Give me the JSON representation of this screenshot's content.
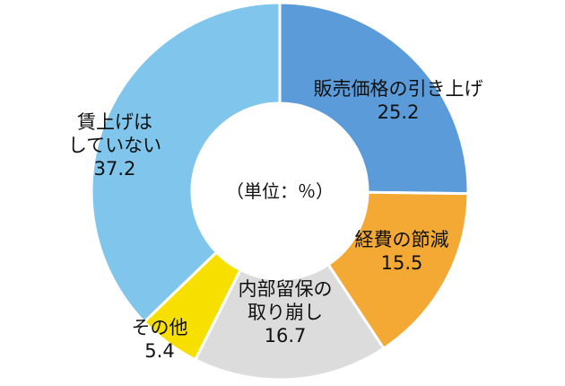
{
  "chart_data": {
    "type": "pie",
    "variant": "donut",
    "unit_label": "（単位：％）",
    "start": "top, clockwise",
    "slices": [
      {
        "label_lines": [
          "販売価格の引き上げ"
        ],
        "value": 25.2,
        "value_text": "25.2",
        "color": "#5b9bd9"
      },
      {
        "label_lines": [
          "経費の節減"
        ],
        "value": 15.5,
        "value_text": "15.5",
        "color": "#f4a935"
      },
      {
        "label_lines": [
          "内部留保の",
          "取り崩し"
        ],
        "value": 16.7,
        "value_text": "16.7",
        "color": "#dcdcdc"
      },
      {
        "label_lines": [
          "その他"
        ],
        "value": 5.4,
        "value_text": "5.4",
        "color": "#f7e000"
      },
      {
        "label_lines": [
          "賃上げは",
          "していない"
        ],
        "value": 37.2,
        "value_text": "37.2",
        "color": "#7fc5ec"
      }
    ],
    "segment_border_color": "#ffffff"
  }
}
